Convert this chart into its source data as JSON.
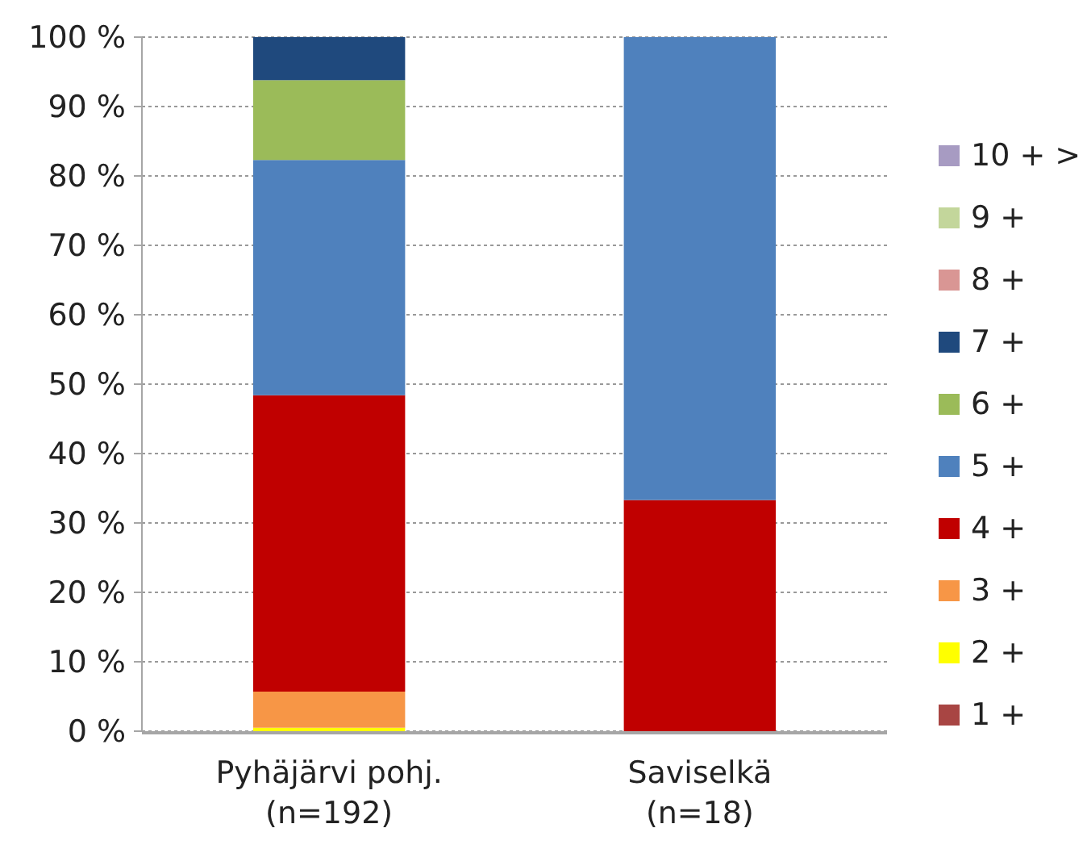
{
  "chart_data": {
    "type": "bar",
    "stacked": true,
    "categories": [
      "Pyhäjärvi pohj.\n(n=192)",
      "Saviselkä\n(n=18)"
    ],
    "series": [
      {
        "name": "1 +",
        "color": "#a84543",
        "values": [
          0,
          0
        ]
      },
      {
        "name": "2 +",
        "color": "#ffff00",
        "values": [
          0.5,
          0
        ]
      },
      {
        "name": "3 +",
        "color": "#f79646",
        "values": [
          5.2,
          0
        ]
      },
      {
        "name": "4 +",
        "color": "#c00000",
        "values": [
          42.7,
          33.3
        ]
      },
      {
        "name": "5 +",
        "color": "#4f81bd",
        "values": [
          33.9,
          66.7
        ]
      },
      {
        "name": "6 +",
        "color": "#9bbb59",
        "values": [
          11.5,
          0
        ]
      },
      {
        "name": "7 +",
        "color": "#1f497d",
        "values": [
          6.2,
          0
        ]
      },
      {
        "name": "8 +",
        "color": "#d99694",
        "values": [
          0,
          0
        ]
      },
      {
        "name": "9 +",
        "color": "#c3d69b",
        "values": [
          0,
          0
        ]
      },
      {
        "name": "10 + >",
        "color": "#a79bc2",
        "values": [
          0,
          0
        ]
      }
    ],
    "ylim": [
      0,
      100
    ],
    "yticks": [
      {
        "value": 0,
        "label": "0 %"
      },
      {
        "value": 10,
        "label": "10 %"
      },
      {
        "value": 20,
        "label": "20 %"
      },
      {
        "value": 30,
        "label": "30 %"
      },
      {
        "value": 40,
        "label": "40 %"
      },
      {
        "value": 50,
        "label": "50 %"
      },
      {
        "value": 60,
        "label": "60 %"
      },
      {
        "value": 70,
        "label": "70 %"
      },
      {
        "value": 80,
        "label": "80 %"
      },
      {
        "value": 90,
        "label": "90 %"
      },
      {
        "value": 100,
        "label": "100 %"
      }
    ],
    "grid": "y",
    "legend": "right"
  }
}
